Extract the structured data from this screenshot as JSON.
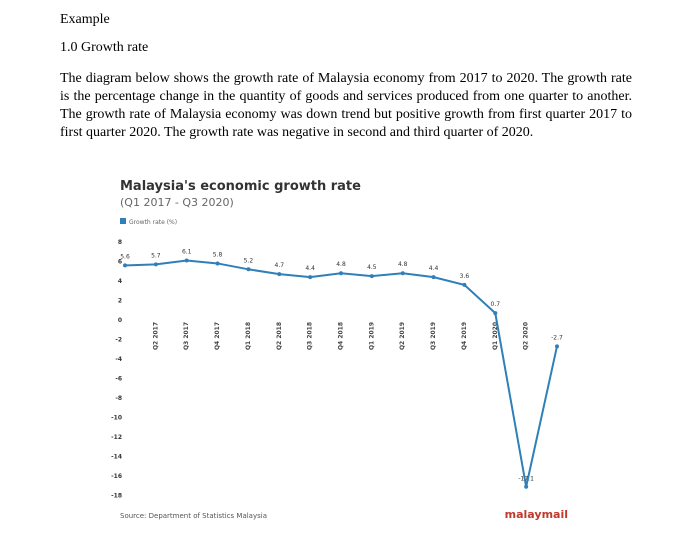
{
  "document": {
    "heading": "Example",
    "section": "1.0 Growth rate",
    "paragraph": "The diagram below shows the growth rate of Malaysia economy from 2017 to 2020. The growth rate is the percentage change in the quantity of goods and services produced from one quarter to another. The growth rate of Malaysia economy was down trend but positive growth from first quarter 2017 to first quarter 2020. The growth rate was negative in second and third quarter of 2020."
  },
  "chart_data": {
    "type": "line",
    "title": "Malaysia's economic growth rate",
    "subtitle": "(Q1 2017 - Q3 2020)",
    "categories": [
      null,
      "Q2 2017",
      "Q3 2017",
      "Q4 2017",
      "Q1 2018",
      "Q2 2018",
      "Q3 2018",
      "Q4 2018",
      "Q1 2019",
      "Q2 2019",
      "Q3 2019",
      "Q4 2019",
      "Q1 2020",
      "Q2 2020",
      null
    ],
    "series": [
      {
        "name": "Growth rate (%)",
        "color": "#2f7fb8",
        "values": [
          5.6,
          5.7,
          6.1,
          5.8,
          5.2,
          4.7,
          4.4,
          4.8,
          4.5,
          4.8,
          4.4,
          3.6,
          0.7,
          -17.1,
          -2.7
        ]
      }
    ],
    "ylim": [
      -18,
      8
    ],
    "yticks": [
      8,
      6,
      4,
      2,
      0,
      -2,
      -4,
      -6,
      -8,
      -10,
      -12,
      -14,
      -16,
      -18
    ],
    "grid": false,
    "legend": "top-left",
    "source": "Source: Department of Statistics Malaysia",
    "logo": "malaymail"
  }
}
